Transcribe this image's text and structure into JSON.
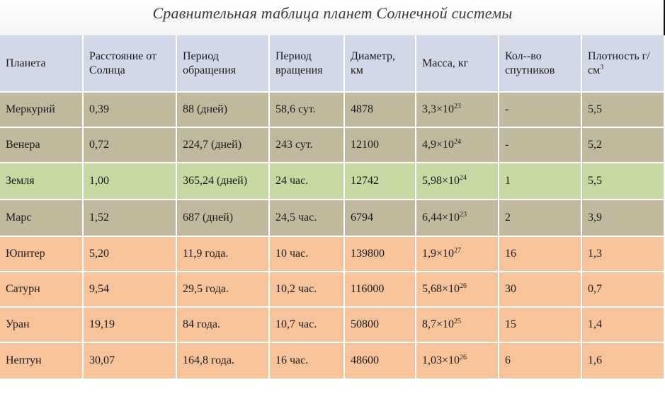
{
  "title": "Сравнительная таблица планет Солнечной системы",
  "headers": {
    "planet": "Планета",
    "distance": "Расстояние от Солнца",
    "orbit": "Период обращения",
    "rotation": "Период вращения",
    "diameter": "Диаметр, км",
    "mass": "Масса, кг",
    "moons": "Кол--во спутников",
    "density_base": "Плотность г/см",
    "density_sup": "3"
  },
  "rows": [
    {
      "planet": "Меркурий",
      "distance": "0,39",
      "orbit": "88 (дней)",
      "rotation": "58,6 сут.",
      "diameter": "4878",
      "mass_base": "3,3×10",
      "mass_exp": "23",
      "moons": "-",
      "density": "5,5",
      "color": "gray"
    },
    {
      "planet": "Венера",
      "distance": "0,72",
      "orbit": "224,7 (дней)",
      "rotation": "243 сут.",
      "diameter": "12100",
      "mass_base": "4,9×10",
      "mass_exp": "24",
      "moons": "-",
      "density": "5,2",
      "color": "gray"
    },
    {
      "planet": "Земля",
      "distance": "1,00",
      "orbit": "365,24 (дней)",
      "rotation": "24 час.",
      "diameter": "12742",
      "mass_base": "5,98×10",
      "mass_exp": "24",
      "moons": "1",
      "density": "5,5",
      "color": "green"
    },
    {
      "planet": "Марс",
      "distance": "1,52",
      "orbit": "687 (дней)",
      "rotation": "24,5 час.",
      "diameter": "6794",
      "mass_base": "6,44×10",
      "mass_exp": "23",
      "moons": "2",
      "density": "3,9",
      "color": "gray"
    },
    {
      "planet": "Юпитер",
      "distance": "5,20",
      "orbit": "11,9 года.",
      "rotation": "10 час.",
      "diameter": "139800",
      "mass_base": "1,9×10",
      "mass_exp": "27",
      "moons": "16",
      "density": "1,3",
      "color": "orange"
    },
    {
      "planet": "Сатурн",
      "distance": "9,54",
      "orbit": "29,5 года.",
      "rotation": "10,2 час.",
      "diameter": "116000",
      "mass_base": "5,68×10",
      "mass_exp": "26",
      "moons": "30",
      "density": "0,7",
      "color": "orange"
    },
    {
      "planet": "Уран",
      "distance": "19,19",
      "orbit": "84 года.",
      "rotation": "10,7 час.",
      "diameter": "50800",
      "mass_base": "8,7×10",
      "mass_exp": "25",
      "moons": "15",
      "density": "1,4",
      "color": "orange"
    },
    {
      "planet": "Нептун",
      "distance": "30,07",
      "orbit": "164,8 года.",
      "rotation": "16 час.",
      "diameter": "48600",
      "mass_base": "1,03×10",
      "mass_exp": "26",
      "moons": "6",
      "density": "1,6",
      "color": "orange"
    }
  ],
  "colors": {
    "header": "#d3d8e8",
    "gray": "#c1b99e",
    "green": "#c6d9a3",
    "orange": "#f7c39a"
  }
}
